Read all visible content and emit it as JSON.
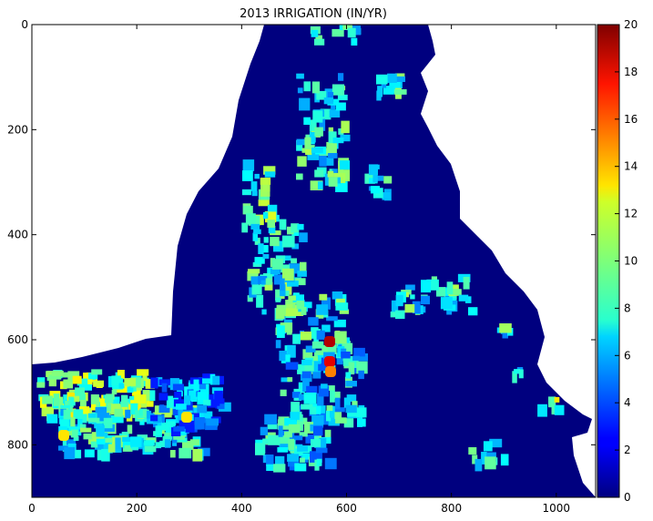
{
  "chart_data": {
    "type": "heatmap",
    "title": "2013 IRRIGATION (IN/YR)",
    "xlabel": "",
    "ylabel": "",
    "xlim": [
      0,
      1075
    ],
    "ylim": [
      0,
      900
    ],
    "y_inverted": true,
    "x_ticks": [
      "0",
      "200",
      "400",
      "600",
      "800",
      "1000"
    ],
    "y_ticks": [
      "0",
      "200",
      "400",
      "600",
      "800"
    ],
    "colorbar": {
      "range": [
        0,
        20
      ],
      "ticks": [
        "0",
        "2",
        "4",
        "6",
        "8",
        "10",
        "12",
        "14",
        "16",
        "18",
        "20"
      ],
      "colormap": "jet"
    },
    "background_value": 0,
    "no_data_regions": "white",
    "colors": {
      "background": "#00007f",
      "nodata": "#ffffff",
      "axis": "#000000"
    }
  }
}
